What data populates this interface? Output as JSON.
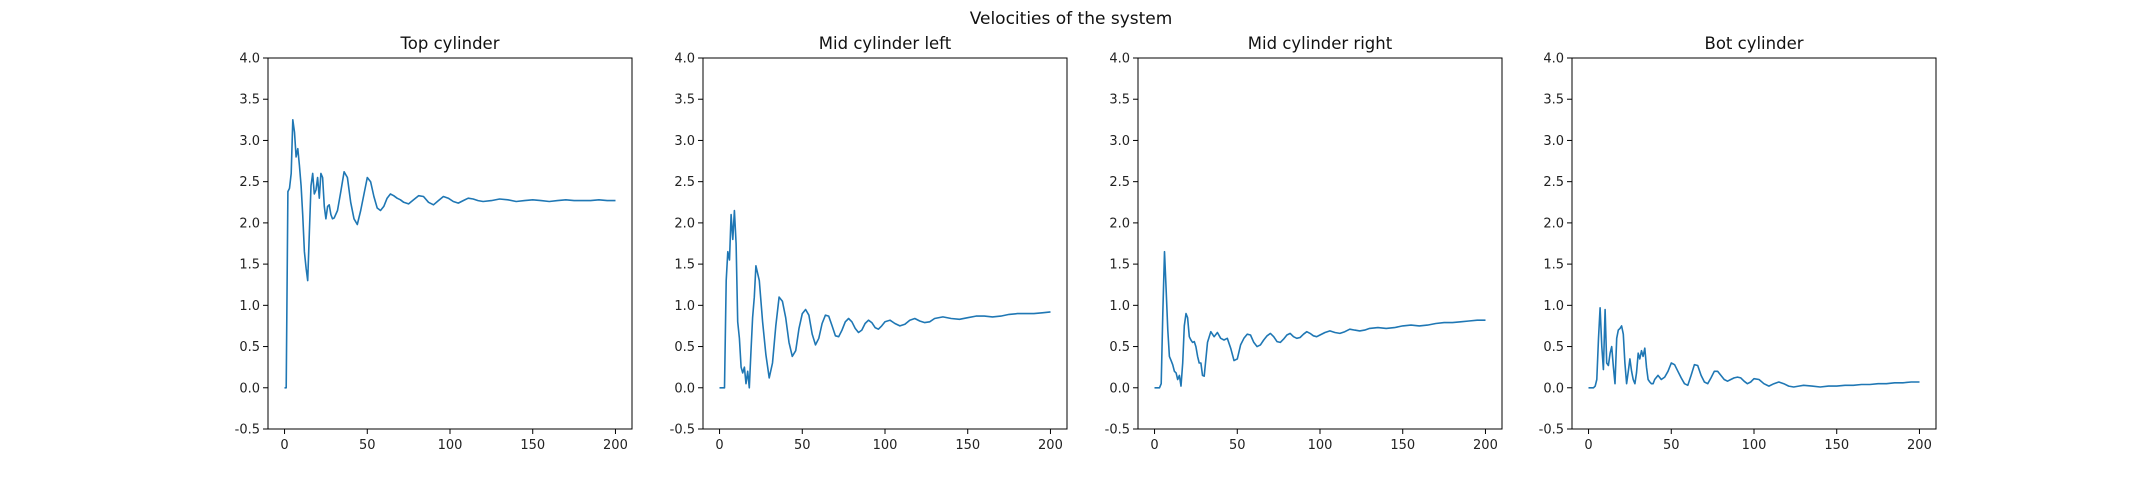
{
  "figure": {
    "suptitle": "Velocities of the system",
    "line_color": "#1f77b4"
  },
  "chart_data": [
    {
      "type": "line",
      "title": "Top cylinder",
      "xlabel": "",
      "ylabel": "",
      "xlim": [
        -10,
        210
      ],
      "ylim": [
        -0.5,
        4.0
      ],
      "xticks": [
        0,
        50,
        100,
        150,
        200
      ],
      "yticks": [
        -0.5,
        0.0,
        0.5,
        1.0,
        1.5,
        2.0,
        2.5,
        3.0,
        3.5,
        4.0
      ],
      "grid": false,
      "series": [
        {
          "x": [
            0,
            1,
            2,
            3,
            4,
            5,
            6,
            7,
            8,
            9,
            10,
            11,
            12,
            13,
            14,
            15,
            16,
            17,
            18,
            19,
            20,
            21,
            22,
            23,
            24,
            25,
            26,
            27,
            28,
            29,
            30,
            32,
            34,
            36,
            38,
            40,
            42,
            44,
            46,
            48,
            50,
            52,
            54,
            56,
            58,
            60,
            62,
            64,
            66,
            68,
            70,
            72,
            75,
            78,
            81,
            84,
            87,
            90,
            93,
            96,
            99,
            102,
            105,
            108,
            111,
            114,
            117,
            120,
            125,
            130,
            135,
            140,
            145,
            150,
            155,
            160,
            165,
            170,
            175,
            180,
            185,
            190,
            195,
            200
          ],
          "y": [
            0.0,
            0.0,
            2.38,
            2.42,
            2.6,
            3.25,
            3.1,
            2.8,
            2.9,
            2.7,
            2.45,
            2.1,
            1.65,
            1.45,
            1.3,
            1.9,
            2.45,
            2.6,
            2.35,
            2.4,
            2.55,
            2.3,
            2.6,
            2.55,
            2.2,
            2.05,
            2.2,
            2.22,
            2.1,
            2.05,
            2.06,
            2.15,
            2.38,
            2.62,
            2.55,
            2.25,
            2.05,
            1.98,
            2.15,
            2.35,
            2.55,
            2.5,
            2.32,
            2.18,
            2.15,
            2.2,
            2.3,
            2.35,
            2.33,
            2.3,
            2.28,
            2.25,
            2.23,
            2.28,
            2.33,
            2.32,
            2.25,
            2.22,
            2.27,
            2.32,
            2.3,
            2.26,
            2.24,
            2.27,
            2.3,
            2.29,
            2.27,
            2.26,
            2.27,
            2.29,
            2.28,
            2.26,
            2.27,
            2.28,
            2.27,
            2.26,
            2.27,
            2.28,
            2.27,
            2.27,
            2.27,
            2.28,
            2.27,
            2.27
          ]
        }
      ]
    },
    {
      "type": "line",
      "title": "Mid cylinder left",
      "xlabel": "",
      "ylabel": "",
      "xlim": [
        -10,
        210
      ],
      "ylim": [
        -0.5,
        4.0
      ],
      "xticks": [
        0,
        50,
        100,
        150,
        200
      ],
      "yticks": [
        -0.5,
        0.0,
        0.5,
        1.0,
        1.5,
        2.0,
        2.5,
        3.0,
        3.5,
        4.0
      ],
      "grid": false,
      "series": [
        {
          "x": [
            0,
            1,
            2,
            3,
            4,
            5,
            6,
            7,
            8,
            9,
            10,
            11,
            12,
            13,
            14,
            15,
            16,
            17,
            18,
            19,
            20,
            21,
            22,
            24,
            26,
            28,
            30,
            32,
            34,
            36,
            38,
            40,
            42,
            44,
            46,
            48,
            50,
            52,
            54,
            56,
            58,
            60,
            62,
            64,
            66,
            68,
            70,
            72,
            74,
            76,
            78,
            80,
            82,
            84,
            86,
            88,
            90,
            92,
            94,
            96,
            98,
            100,
            103,
            106,
            109,
            112,
            115,
            118,
            121,
            124,
            127,
            130,
            135,
            140,
            145,
            150,
            155,
            160,
            165,
            170,
            175,
            180,
            185,
            190,
            195,
            200
          ],
          "y": [
            0.0,
            0.0,
            0.0,
            0.0,
            1.3,
            1.65,
            1.55,
            2.1,
            1.8,
            2.15,
            1.75,
            0.8,
            0.6,
            0.25,
            0.18,
            0.25,
            0.05,
            0.2,
            0.0,
            0.45,
            0.85,
            1.1,
            1.48,
            1.3,
            0.8,
            0.4,
            0.12,
            0.3,
            0.75,
            1.1,
            1.05,
            0.85,
            0.55,
            0.38,
            0.45,
            0.72,
            0.9,
            0.95,
            0.88,
            0.65,
            0.52,
            0.6,
            0.78,
            0.88,
            0.87,
            0.75,
            0.63,
            0.62,
            0.7,
            0.8,
            0.84,
            0.8,
            0.72,
            0.67,
            0.7,
            0.78,
            0.82,
            0.79,
            0.73,
            0.71,
            0.75,
            0.8,
            0.82,
            0.78,
            0.75,
            0.77,
            0.82,
            0.84,
            0.81,
            0.79,
            0.8,
            0.84,
            0.86,
            0.84,
            0.83,
            0.85,
            0.87,
            0.87,
            0.86,
            0.87,
            0.89,
            0.9,
            0.9,
            0.9,
            0.91,
            0.92
          ]
        }
      ]
    },
    {
      "type": "line",
      "title": "Mid cylinder right",
      "xlabel": "",
      "ylabel": "",
      "xlim": [
        -10,
        210
      ],
      "ylim": [
        -0.5,
        4.0
      ],
      "xticks": [
        0,
        50,
        100,
        150,
        200
      ],
      "yticks": [
        -0.5,
        0.0,
        0.5,
        1.0,
        1.5,
        2.0,
        2.5,
        3.0,
        3.5,
        4.0
      ],
      "grid": false,
      "series": [
        {
          "x": [
            0,
            1,
            2,
            3,
            4,
            5,
            6,
            7,
            8,
            9,
            10,
            11,
            12,
            13,
            14,
            15,
            16,
            17,
            18,
            19,
            20,
            21,
            22,
            23,
            24,
            25,
            26,
            27,
            28,
            29,
            30,
            32,
            34,
            36,
            38,
            40,
            42,
            44,
            46,
            48,
            50,
            52,
            54,
            56,
            58,
            60,
            62,
            64,
            66,
            68,
            70,
            72,
            74,
            76,
            78,
            80,
            82,
            84,
            86,
            88,
            90,
            92,
            94,
            96,
            98,
            100,
            103,
            106,
            109,
            112,
            115,
            118,
            121,
            124,
            127,
            130,
            135,
            140,
            145,
            150,
            155,
            160,
            165,
            170,
            175,
            180,
            185,
            190,
            195,
            200
          ],
          "y": [
            0.0,
            0.0,
            0.0,
            0.0,
            0.05,
            0.9,
            1.65,
            1.2,
            0.7,
            0.38,
            0.33,
            0.28,
            0.2,
            0.18,
            0.1,
            0.15,
            0.02,
            0.3,
            0.75,
            0.9,
            0.85,
            0.62,
            0.58,
            0.55,
            0.56,
            0.5,
            0.38,
            0.3,
            0.3,
            0.15,
            0.14,
            0.55,
            0.68,
            0.62,
            0.67,
            0.6,
            0.58,
            0.6,
            0.48,
            0.33,
            0.35,
            0.52,
            0.6,
            0.65,
            0.64,
            0.55,
            0.5,
            0.52,
            0.58,
            0.63,
            0.66,
            0.62,
            0.56,
            0.55,
            0.59,
            0.64,
            0.66,
            0.62,
            0.6,
            0.61,
            0.65,
            0.68,
            0.66,
            0.63,
            0.62,
            0.64,
            0.67,
            0.69,
            0.67,
            0.66,
            0.68,
            0.71,
            0.7,
            0.69,
            0.7,
            0.72,
            0.73,
            0.72,
            0.73,
            0.75,
            0.76,
            0.75,
            0.76,
            0.78,
            0.79,
            0.79,
            0.8,
            0.81,
            0.82,
            0.82
          ]
        }
      ]
    },
    {
      "type": "line",
      "title": "Bot cylinder",
      "xlabel": "",
      "ylabel": "",
      "xlim": [
        -10,
        210
      ],
      "ylim": [
        -0.5,
        4.0
      ],
      "xticks": [
        0,
        50,
        100,
        150,
        200
      ],
      "yticks": [
        -0.5,
        0.0,
        0.5,
        1.0,
        1.5,
        2.0,
        2.5,
        3.0,
        3.5,
        4.0
      ],
      "grid": false,
      "series": [
        {
          "x": [
            0,
            1,
            2,
            3,
            4,
            5,
            6,
            7,
            8,
            9,
            10,
            11,
            12,
            13,
            14,
            15,
            16,
            17,
            18,
            19,
            20,
            21,
            22,
            23,
            24,
            25,
            26,
            27,
            28,
            29,
            30,
            31,
            32,
            33,
            34,
            35,
            36,
            37,
            38,
            39,
            40,
            42,
            44,
            46,
            48,
            50,
            52,
            54,
            56,
            58,
            60,
            62,
            64,
            66,
            68,
            70,
            72,
            74,
            76,
            78,
            80,
            82,
            84,
            86,
            88,
            90,
            92,
            94,
            96,
            98,
            100,
            103,
            106,
            109,
            112,
            115,
            118,
            121,
            124,
            127,
            130,
            135,
            140,
            145,
            150,
            155,
            160,
            165,
            170,
            175,
            180,
            185,
            190,
            195,
            200
          ],
          "y": [
            0.0,
            0.0,
            0.0,
            0.0,
            0.02,
            0.1,
            0.6,
            0.97,
            0.5,
            0.22,
            0.95,
            0.3,
            0.27,
            0.42,
            0.5,
            0.25,
            0.05,
            0.6,
            0.7,
            0.72,
            0.75,
            0.65,
            0.3,
            0.05,
            0.2,
            0.35,
            0.2,
            0.1,
            0.05,
            0.18,
            0.42,
            0.35,
            0.45,
            0.38,
            0.48,
            0.25,
            0.1,
            0.07,
            0.05,
            0.05,
            0.1,
            0.15,
            0.1,
            0.13,
            0.2,
            0.3,
            0.28,
            0.2,
            0.12,
            0.05,
            0.03,
            0.15,
            0.28,
            0.27,
            0.15,
            0.07,
            0.05,
            0.12,
            0.2,
            0.2,
            0.15,
            0.1,
            0.08,
            0.1,
            0.12,
            0.13,
            0.12,
            0.08,
            0.05,
            0.07,
            0.11,
            0.1,
            0.05,
            0.02,
            0.05,
            0.07,
            0.05,
            0.02,
            0.01,
            0.02,
            0.03,
            0.02,
            0.01,
            0.02,
            0.02,
            0.03,
            0.03,
            0.04,
            0.04,
            0.05,
            0.05,
            0.06,
            0.06,
            0.07,
            0.07
          ]
        }
      ]
    }
  ]
}
